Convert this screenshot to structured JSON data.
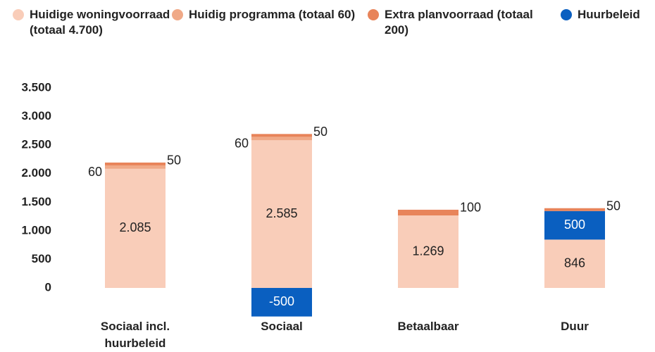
{
  "chart_data": {
    "type": "stacked_bar",
    "categories": [
      "Sociaal incl. huurbeleid",
      "Sociaal",
      "Betaalbaar",
      "Duur"
    ],
    "series": [
      {
        "name": "Huidige woningvoorraad (totaal 4.700)",
        "color": "#f9cdb9",
        "values": [
          2085,
          2585,
          1269,
          846
        ],
        "value_labels": [
          "2.085",
          "2.585",
          "1.269",
          "846"
        ]
      },
      {
        "name": "Huidig programma (totaal 60)",
        "color": "#f0a987",
        "values": [
          60,
          60,
          null,
          null
        ]
      },
      {
        "name": "Extra planvoorraad (totaal 200)",
        "color": "#e8845a",
        "values": [
          50,
          50,
          100,
          50
        ]
      },
      {
        "name": "Huurbeleid",
        "color": "#0a5fc0",
        "values": [
          null,
          -500,
          null,
          500
        ]
      }
    ],
    "ylim": [
      -500,
      3500
    ],
    "yticks": [
      0,
      500,
      {
        "value": 1000,
        "label": "1.000"
      },
      {
        "value": 1500,
        "label": "1.500"
      },
      {
        "value": 2000,
        "label": "2.000"
      },
      {
        "value": 2500,
        "label": "2.500"
      },
      {
        "value": 3000,
        "label": "3.000"
      },
      {
        "value": 3500,
        "label": "3.500"
      }
    ],
    "grid": false
  }
}
